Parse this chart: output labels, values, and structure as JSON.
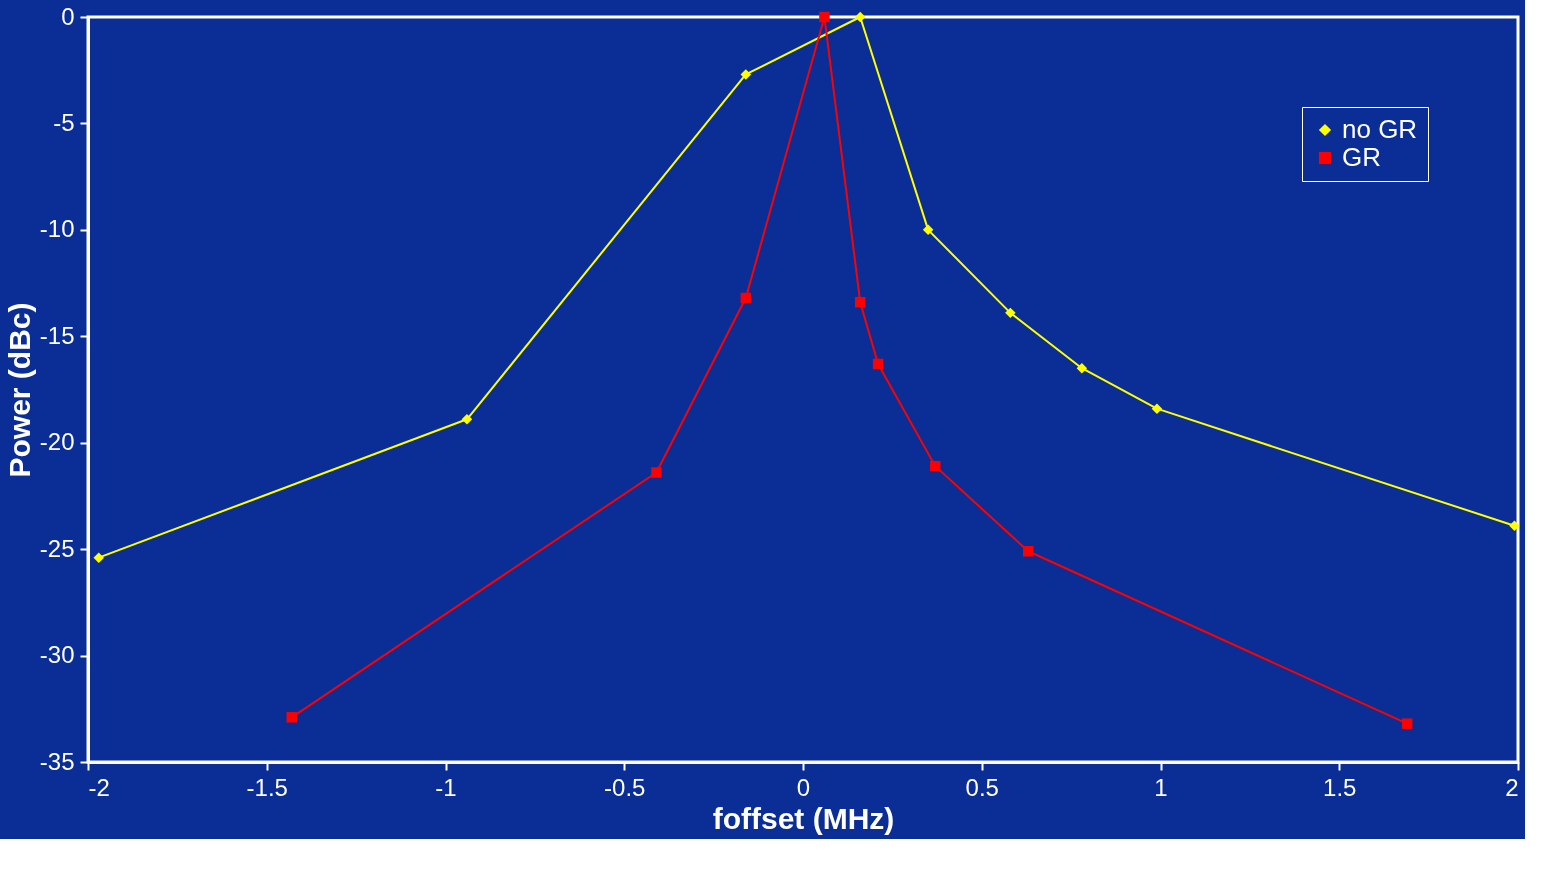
{
  "chart_data": {
    "type": "line",
    "xlabel": "foffset (MHz)",
    "ylabel": "Power (dBc)",
    "xlim": [
      -2,
      2
    ],
    "xticks": [
      -2,
      -1.5,
      -1,
      -0.5,
      0,
      0.5,
      1,
      1.5,
      2
    ],
    "ylim": [
      -35,
      0
    ],
    "yticks": [
      -35,
      -30,
      -25,
      -20,
      -15,
      -10,
      -5,
      0
    ],
    "grid": false,
    "legend": "top right",
    "line_style": "solid",
    "series": [
      {
        "name": "no GR",
        "color": "#ffff00",
        "marker": "diamond",
        "x": [
          -1.97,
          -0.94,
          -0.16,
          0.16,
          0.35,
          0.58,
          0.78,
          0.99,
          1.99
        ],
        "values": [
          -25.4,
          -18.9,
          -2.7,
          0,
          -10.0,
          -13.9,
          -16.5,
          -18.4,
          -23.9
        ]
      },
      {
        "name": "GR",
        "color": "#ff0000",
        "marker": "square",
        "x": [
          -1.43,
          -0.41,
          -0.16,
          0.06,
          0.16,
          0.21,
          0.37,
          0.63,
          1.69
        ],
        "values": [
          -32.9,
          -21.4,
          -13.2,
          0,
          -13.4,
          -16.3,
          -21.1,
          -25.1,
          -33.2
        ]
      }
    ]
  }
}
